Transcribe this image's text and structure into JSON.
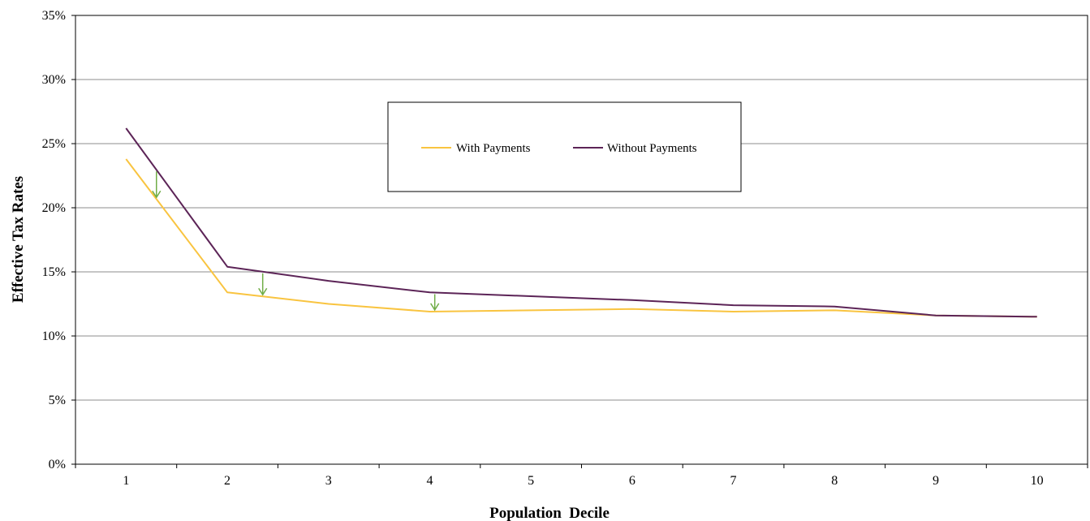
{
  "chart_data": {
    "type": "line",
    "xlabel": "Population  Decile",
    "ylabel": "Effective Tax Rates",
    "categories": [
      "1",
      "2",
      "3",
      "4",
      "5",
      "6",
      "7",
      "8",
      "9",
      "10"
    ],
    "ylim": [
      0,
      35
    ],
    "yticks": [
      "0%",
      "5%",
      "10%",
      "15%",
      "20%",
      "25%",
      "30%",
      "35%"
    ],
    "grid": true,
    "legend_position": "top-center",
    "series": [
      {
        "name": "With Payments",
        "color": "#F9C440",
        "values": [
          23.8,
          13.4,
          12.5,
          11.9,
          12.0,
          12.1,
          11.9,
          12.0,
          11.6,
          11.5
        ]
      },
      {
        "name": "Without Payments",
        "color": "#5C2457",
        "values": [
          26.2,
          15.4,
          14.3,
          13.4,
          13.1,
          12.8,
          12.4,
          12.3,
          11.6,
          11.5
        ]
      }
    ],
    "annotations": [
      {
        "type": "arrow",
        "color": "#70AD47",
        "at_decile": 1.3
      },
      {
        "type": "arrow",
        "color": "#70AD47",
        "at_decile": 2.35
      },
      {
        "type": "arrow",
        "color": "#70AD47",
        "at_decile": 4.05
      }
    ]
  }
}
